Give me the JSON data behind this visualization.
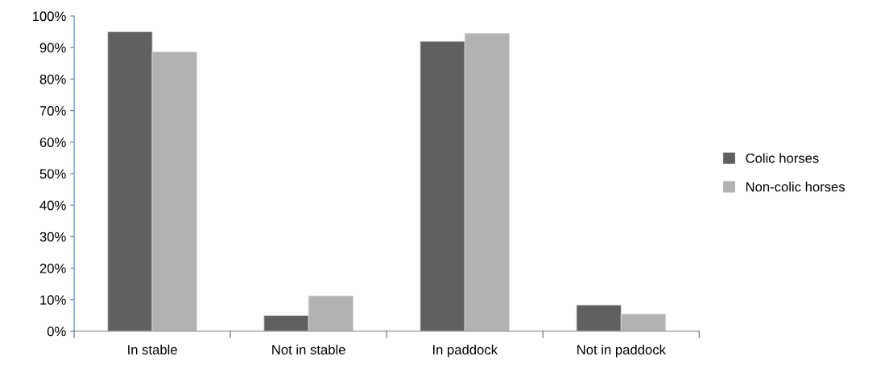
{
  "chart_data": {
    "type": "bar",
    "categories": [
      "In stable",
      "Not in stable",
      "In paddock",
      "Not in paddock"
    ],
    "series": [
      {
        "name": "Colic horses",
        "color": "#606060",
        "values": [
          95,
          5,
          92,
          8.3
        ]
      },
      {
        "name": "Non-colic horses",
        "color": "#b2b2b2",
        "values": [
          88.6,
          11.2,
          94.5,
          5.4
        ]
      }
    ],
    "ylim": [
      0,
      100
    ],
    "yticks": [
      {
        "value": 0,
        "label": "0%"
      },
      {
        "value": 10,
        "label": "10%"
      },
      {
        "value": 20,
        "label": "20%"
      },
      {
        "value": 30,
        "label": "30%"
      },
      {
        "value": 40,
        "label": "40%"
      },
      {
        "value": 50,
        "label": "50%"
      },
      {
        "value": 60,
        "label": "60%"
      },
      {
        "value": 70,
        "label": "70%"
      },
      {
        "value": 80,
        "label": "80%"
      },
      {
        "value": 90,
        "label": "90%"
      },
      {
        "value": 100,
        "label": "100%"
      }
    ],
    "grid": false,
    "legend": "right"
  }
}
